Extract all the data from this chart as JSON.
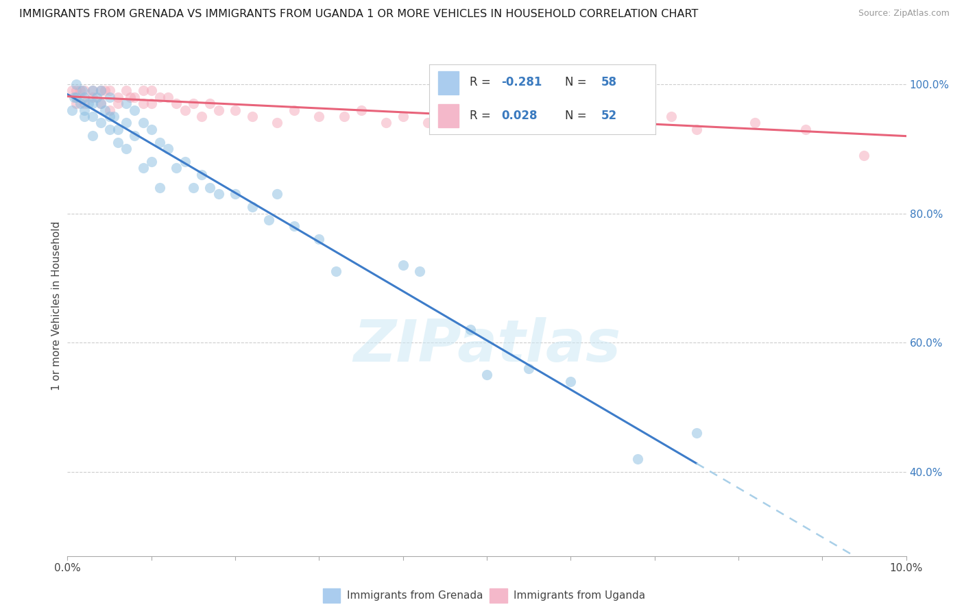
{
  "title": "IMMIGRANTS FROM GRENADA VS IMMIGRANTS FROM UGANDA 1 OR MORE VEHICLES IN HOUSEHOLD CORRELATION CHART",
  "source": "Source: ZipAtlas.com",
  "ylabel": "1 or more Vehicles in Household",
  "xmin": 0.0,
  "xmax": 0.1,
  "ymin": 0.27,
  "ymax": 1.045,
  "yticks_right_vals": [
    0.4,
    0.6,
    0.8,
    1.0
  ],
  "yticks_right_labels": [
    "40.0%",
    "60.0%",
    "80.0%",
    "100.0%"
  ],
  "grenada_color": "#89bde0",
  "ugandaedge_color": "#f4a7b9",
  "grenada_line_color": "#3d7cc9",
  "uganda_line_color": "#e8637a",
  "grenada_dash_color": "#a8cfe8",
  "background_color": "#ffffff",
  "grid_color": "#cccccc",
  "watermark": "ZIPatlas",
  "grenada_R": -0.281,
  "grenada_N": 58,
  "uganda_R": 0.028,
  "uganda_N": 52,
  "grenada_x": [
    0.0005,
    0.0008,
    0.001,
    0.001,
    0.0015,
    0.0018,
    0.002,
    0.002,
    0.002,
    0.0025,
    0.003,
    0.003,
    0.003,
    0.003,
    0.0035,
    0.004,
    0.004,
    0.004,
    0.0045,
    0.005,
    0.005,
    0.005,
    0.0055,
    0.006,
    0.006,
    0.007,
    0.007,
    0.007,
    0.008,
    0.008,
    0.009,
    0.009,
    0.01,
    0.01,
    0.011,
    0.011,
    0.012,
    0.013,
    0.014,
    0.015,
    0.016,
    0.017,
    0.018,
    0.02,
    0.022,
    0.024,
    0.025,
    0.027,
    0.03,
    0.032,
    0.04,
    0.042,
    0.048,
    0.05,
    0.055,
    0.06,
    0.068,
    0.075
  ],
  "grenada_y": [
    0.96,
    0.98,
    1.0,
    0.98,
    0.97,
    0.99,
    0.98,
    0.96,
    0.95,
    0.97,
    0.99,
    0.97,
    0.95,
    0.92,
    0.98,
    0.99,
    0.97,
    0.94,
    0.96,
    0.98,
    0.95,
    0.93,
    0.95,
    0.93,
    0.91,
    0.97,
    0.94,
    0.9,
    0.96,
    0.92,
    0.94,
    0.87,
    0.93,
    0.88,
    0.91,
    0.84,
    0.9,
    0.87,
    0.88,
    0.84,
    0.86,
    0.84,
    0.83,
    0.83,
    0.81,
    0.79,
    0.83,
    0.78,
    0.76,
    0.71,
    0.72,
    0.71,
    0.62,
    0.55,
    0.56,
    0.54,
    0.42,
    0.46
  ],
  "uganda_x": [
    0.0005,
    0.001,
    0.001,
    0.0015,
    0.002,
    0.002,
    0.003,
    0.003,
    0.004,
    0.004,
    0.0045,
    0.005,
    0.005,
    0.006,
    0.006,
    0.007,
    0.0075,
    0.008,
    0.009,
    0.009,
    0.01,
    0.01,
    0.011,
    0.012,
    0.013,
    0.014,
    0.015,
    0.016,
    0.017,
    0.018,
    0.02,
    0.022,
    0.025,
    0.027,
    0.03,
    0.033,
    0.035,
    0.038,
    0.04,
    0.043,
    0.045,
    0.05,
    0.055,
    0.06,
    0.062,
    0.065,
    0.068,
    0.072,
    0.075,
    0.082,
    0.088,
    0.095
  ],
  "uganda_y": [
    0.99,
    0.99,
    0.97,
    0.99,
    0.99,
    0.97,
    0.99,
    0.98,
    0.99,
    0.97,
    0.99,
    0.99,
    0.96,
    0.98,
    0.97,
    0.99,
    0.98,
    0.98,
    0.99,
    0.97,
    0.99,
    0.97,
    0.98,
    0.98,
    0.97,
    0.96,
    0.97,
    0.95,
    0.97,
    0.96,
    0.96,
    0.95,
    0.94,
    0.96,
    0.95,
    0.95,
    0.96,
    0.94,
    0.95,
    0.94,
    0.97,
    0.96,
    0.96,
    0.95,
    0.96,
    0.96,
    0.95,
    0.95,
    0.93,
    0.94,
    0.93,
    0.89
  ]
}
